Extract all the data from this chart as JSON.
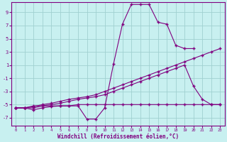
{
  "background_color": "#c8f0f0",
  "grid_color": "#a0d0d0",
  "line_color": "#800080",
  "xlabel": "Windchill (Refroidissement éolien,°C)",
  "ylabel_ticks": [
    9,
    7,
    5,
    3,
    1,
    -1,
    -3,
    -5,
    -7
  ],
  "xlim": [
    -0.5,
    23.5
  ],
  "ylim": [
    -8.2,
    10.5
  ],
  "xticks": [
    0,
    1,
    2,
    3,
    4,
    5,
    6,
    7,
    8,
    9,
    10,
    11,
    12,
    13,
    14,
    15,
    16,
    17,
    18,
    19,
    20,
    21,
    22,
    23
  ],
  "series": [
    {
      "x": [
        0,
        1,
        2,
        3,
        4,
        5,
        6,
        7,
        8,
        9,
        10,
        11,
        12,
        13,
        14,
        15,
        16,
        17,
        18,
        19,
        20
      ],
      "y": [
        -5.5,
        -5.5,
        -5.8,
        -5.5,
        -5.3,
        -5.2,
        -5.2,
        -5.2,
        -7.2,
        -7.2,
        -5.5,
        1.2,
        7.2,
        10.2,
        10.2,
        10.2,
        7.5,
        7.2,
        4.0,
        3.5,
        3.5
      ]
    },
    {
      "x": [
        0,
        1,
        2,
        3,
        4,
        5,
        6,
        7,
        8,
        9,
        10,
        11,
        12,
        13,
        14,
        15,
        16,
        17,
        18,
        19,
        20,
        21,
        22,
        23
      ],
      "y": [
        -5.5,
        -5.5,
        -5.2,
        -5.2,
        -5.2,
        -5.2,
        -5.2,
        -5.0,
        -5.0,
        -5.0,
        -5.0,
        -5.0,
        -5.0,
        -5.0,
        -5.0,
        -5.0,
        -5.0,
        -5.0,
        -5.0,
        -5.0,
        -5.0,
        -5.0,
        -5.0,
        -5.0
      ]
    },
    {
      "x": [
        0,
        1,
        2,
        3,
        4,
        5,
        6,
        7,
        8,
        9,
        10,
        11,
        12,
        13,
        14,
        15,
        16,
        17,
        18,
        19,
        20,
        21,
        22,
        23
      ],
      "y": [
        -5.5,
        -5.5,
        -5.5,
        -5.2,
        -5.0,
        -4.8,
        -4.5,
        -4.2,
        -4.0,
        -3.8,
        -3.5,
        -3.0,
        -2.5,
        -2.0,
        -1.5,
        -1.0,
        -0.5,
        0.0,
        0.5,
        1.0,
        -2.2,
        -4.2,
        -5.0,
        -5.0
      ]
    },
    {
      "x": [
        0,
        1,
        2,
        3,
        4,
        5,
        6,
        7,
        8,
        9,
        10,
        11,
        12,
        13,
        14,
        15,
        16,
        17,
        18,
        19,
        20,
        21,
        22,
        23
      ],
      "y": [
        -5.5,
        -5.5,
        -5.3,
        -5.0,
        -4.8,
        -4.5,
        -4.2,
        -4.0,
        -3.8,
        -3.5,
        -3.0,
        -2.5,
        -2.0,
        -1.5,
        -1.0,
        -0.5,
        0.0,
        0.5,
        1.0,
        1.5,
        2.0,
        2.5,
        3.0,
        3.5
      ]
    }
  ]
}
